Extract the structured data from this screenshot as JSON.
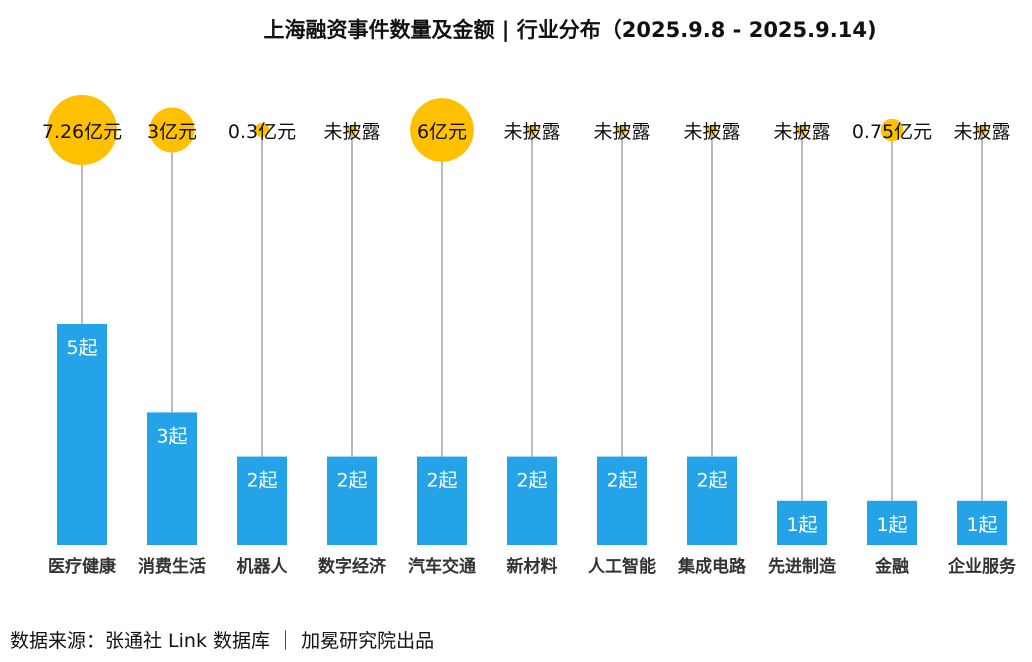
{
  "chart_data": {
    "type": "bar",
    "title": "上海融资事件数量及金额 | 行业分布（2025.9.8 - 2025.9.14)",
    "categories": [
      "医疗健康",
      "消费生活",
      "机器人",
      "数字经济",
      "汽车交通",
      "新材料",
      "人工智能",
      "集成电路",
      "先进制造",
      "金融",
      "企业服务"
    ],
    "series": [
      {
        "values": [
          5,
          3,
          2,
          2,
          2,
          2,
          2,
          2,
          1,
          1,
          1
        ],
        "labels": [
          "5起",
          "3起",
          "2起",
          "2起",
          "2起",
          "2起",
          "2起",
          "2起",
          "1起",
          "1起",
          "1起"
        ]
      },
      {
        "values": [
          7.26,
          3,
          0.3,
          null,
          6,
          null,
          null,
          null,
          null,
          0.75,
          null
        ],
        "labels": [
          "7.26亿元",
          "3亿元",
          "0.3亿元",
          "未披露",
          "6亿元",
          "未披露",
          "未披露",
          "未披露",
          "未披露",
          "0.75亿元",
          "未披露"
        ]
      }
    ],
    "grid": false,
    "legend": "none"
  },
  "source": "数据来源：张通社 Link 数据库 ｜ 加冕研究院出品",
  "colors": {
    "bar": "#25A3E8",
    "bubble": "#FFC000",
    "stem": "#BBBBBB"
  }
}
